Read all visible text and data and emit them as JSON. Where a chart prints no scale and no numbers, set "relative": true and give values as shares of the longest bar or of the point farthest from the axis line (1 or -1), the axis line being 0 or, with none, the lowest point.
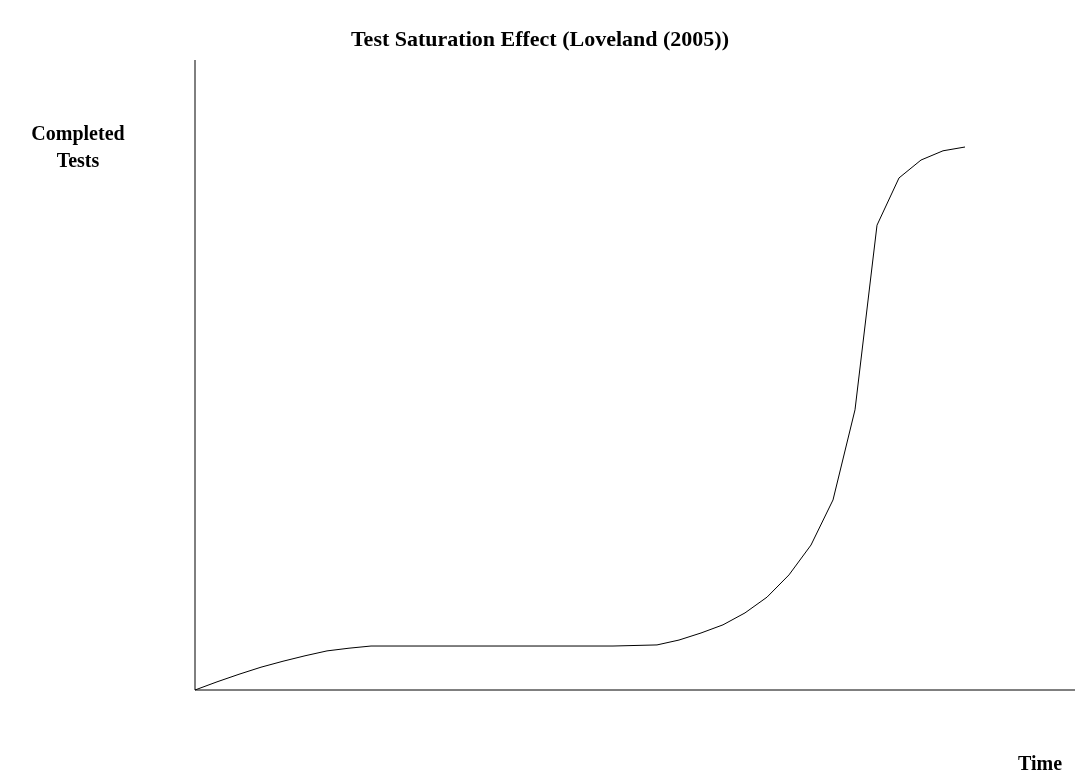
{
  "chart_data": {
    "type": "line",
    "title": "Test Saturation Effect (Loveland (2005))",
    "xlabel": "Time",
    "ylabel": "Completed Tests",
    "relative": true,
    "marker": "none",
    "line_style": "solid",
    "categories": [
      null,
      null,
      null,
      null,
      null,
      null,
      null,
      null,
      null,
      null,
      null,
      null,
      null,
      null,
      null,
      null,
      null,
      null,
      null,
      null,
      null,
      null,
      null,
      null,
      null,
      null,
      null,
      null,
      null,
      null,
      null,
      null,
      null,
      null,
      null,
      null,
      null,
      null,
      null,
      null,
      null
    ],
    "series": [
      {
        "color": "#000000",
        "values": [
          0,
          0.015,
          0.029,
          0.042,
          0.053,
          0.063,
          0.072,
          0.077,
          0.081,
          0.081,
          0.081,
          0.081,
          0.081,
          0.081,
          0.081,
          0.081,
          0.081,
          0.081,
          0.081,
          0.081,
          0.082,
          0.083,
          0.092,
          0.105,
          0.12,
          0.142,
          0.171,
          0.212,
          0.267,
          0.35,
          0.516,
          0.856,
          0.943,
          0.976,
          0.993,
          1,
          null,
          null,
          null,
          null,
          null
        ]
      }
    ]
  }
}
